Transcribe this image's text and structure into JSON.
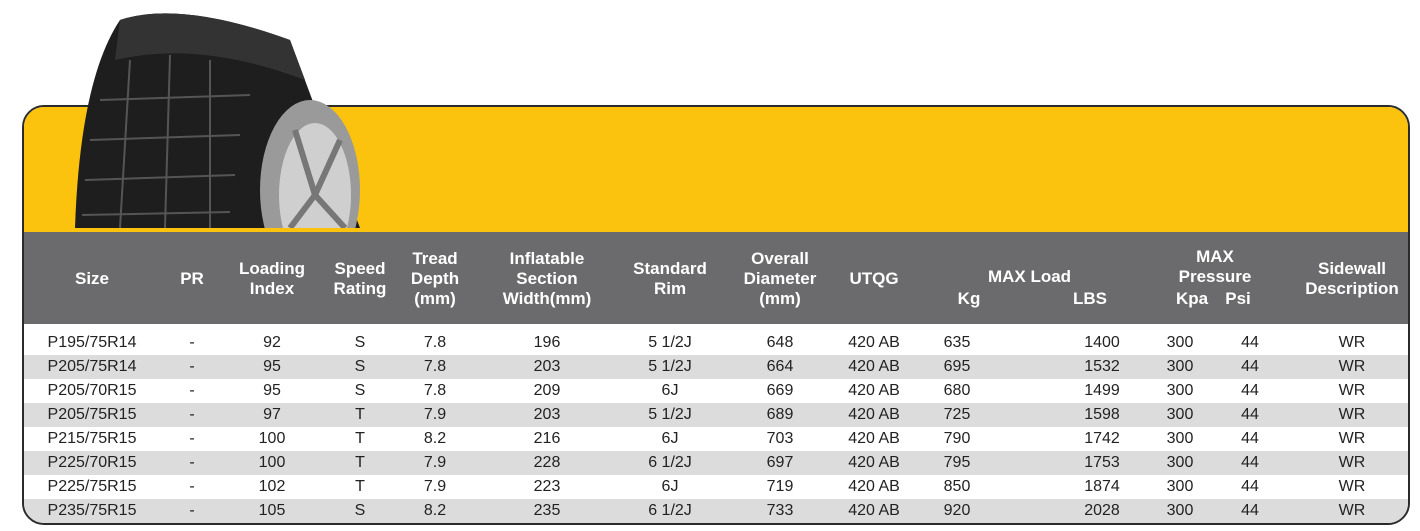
{
  "table": {
    "headers": [
      {
        "label": "Size"
      },
      {
        "label": "PR"
      },
      {
        "label": "Loading\nIndex"
      },
      {
        "label": "Speed\nRating"
      },
      {
        "label": "Tread\nDepth\n(mm)"
      },
      {
        "label": "Inflatable\nSection\nWidth(mm)"
      },
      {
        "label": "Standard\nRim"
      },
      {
        "label": "Overall\nDiameter\n(mm)"
      },
      {
        "label": "UTQG"
      },
      {
        "label": "MAX Load",
        "sub": [
          "Kg",
          "LBS"
        ]
      },
      {
        "label": "MAX\nPressure",
        "sub": [
          "Kpa",
          "Psi"
        ]
      },
      {
        "label": "Sidewall\nDescription"
      }
    ],
    "rows": [
      [
        "P195/75R14",
        "-",
        "92",
        "S",
        "7.8",
        "196",
        "5 1/2J",
        "648",
        "420 AB",
        "635",
        "1400",
        "300",
        "44",
        "WR"
      ],
      [
        "P205/75R14",
        "-",
        "95",
        "S",
        "7.8",
        "203",
        "5 1/2J",
        "664",
        "420 AB",
        "695",
        "1532",
        "300",
        "44",
        "WR"
      ],
      [
        "P205/70R15",
        "-",
        "95",
        "S",
        "7.8",
        "209",
        "6J",
        "669",
        "420 AB",
        "680",
        "1499",
        "300",
        "44",
        "WR"
      ],
      [
        "P205/75R15",
        "-",
        "97",
        "T",
        "7.9",
        "203",
        "5 1/2J",
        "689",
        "420 AB",
        "725",
        "1598",
        "300",
        "44",
        "WR"
      ],
      [
        "P215/75R15",
        "-",
        "100",
        "T",
        "8.2",
        "216",
        "6J",
        "703",
        "420 AB",
        "790",
        "1742",
        "300",
        "44",
        "WR"
      ],
      [
        "P225/70R15",
        "-",
        "100",
        "T",
        "7.9",
        "228",
        "6 1/2J",
        "697",
        "420 AB",
        "795",
        "1753",
        "300",
        "44",
        "WR"
      ],
      [
        "P225/75R15",
        "-",
        "102",
        "T",
        "7.9",
        "223",
        "6J",
        "719",
        "420 AB",
        "850",
        "1874",
        "300",
        "44",
        "WR"
      ],
      [
        "P235/75R15",
        "-",
        "105",
        "S",
        "8.2",
        "235",
        "6 1/2J",
        "733",
        "420 AB",
        "920",
        "2028",
        "300",
        "44",
        "WR"
      ]
    ]
  }
}
